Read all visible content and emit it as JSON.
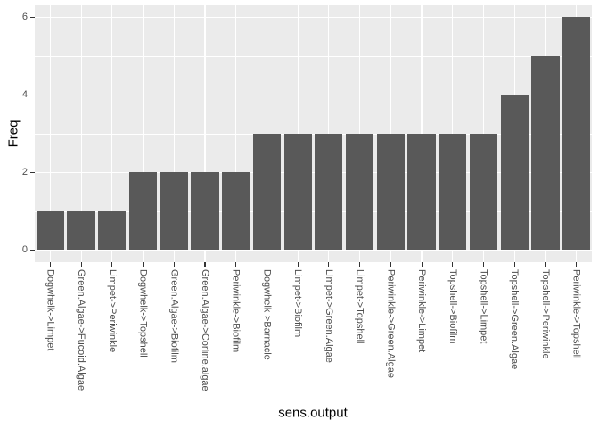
{
  "chart_data": {
    "type": "bar",
    "title": "",
    "xlabel": "sens.output",
    "ylabel": "Freq",
    "categories": [
      "Dogwhelk->Limpet",
      "Green.Algae->Fucoid.Algae",
      "Limpet->Periwinkle",
      "Dogwhelk->Topshell",
      "Green.Algae->Biofilm",
      "Green.Algae->Corline.algae",
      "Periwinkle->Biofilm",
      "Dogwhelk->Barnacle",
      "Limpet->Biofilm",
      "Limpet->Green.Algae",
      "Limpet->Topshell",
      "Periwinkle->Green.Algae",
      "Periwinkle->Limpet",
      "Topshell->Biofilm",
      "Topshell->Limpet",
      "Topshell->Green.Algae",
      "Topshell->Periwinkle",
      "Periwinkle->Topshell"
    ],
    "values": [
      1,
      1,
      1,
      2,
      2,
      2,
      2,
      3,
      3,
      3,
      3,
      3,
      3,
      3,
      3,
      4,
      5,
      6
    ],
    "ylim": [
      0,
      6
    ],
    "yticks": [
      "0",
      "2",
      "4",
      "6"
    ],
    "ytick_values": [
      0,
      2,
      4,
      6
    ],
    "yminor_values": [
      1,
      3,
      5
    ],
    "grid": true,
    "legend": false,
    "colors": {
      "bar_fill": "#595959",
      "panel_bg": "#EBEBEB",
      "grid_major": "#FFFFFF",
      "grid_minor": "#FFFFFF",
      "axis_text": "#4D4D4D",
      "tick_mark": "#333333",
      "title_text": "#000000",
      "page_bg": "#FFFFFF"
    }
  }
}
